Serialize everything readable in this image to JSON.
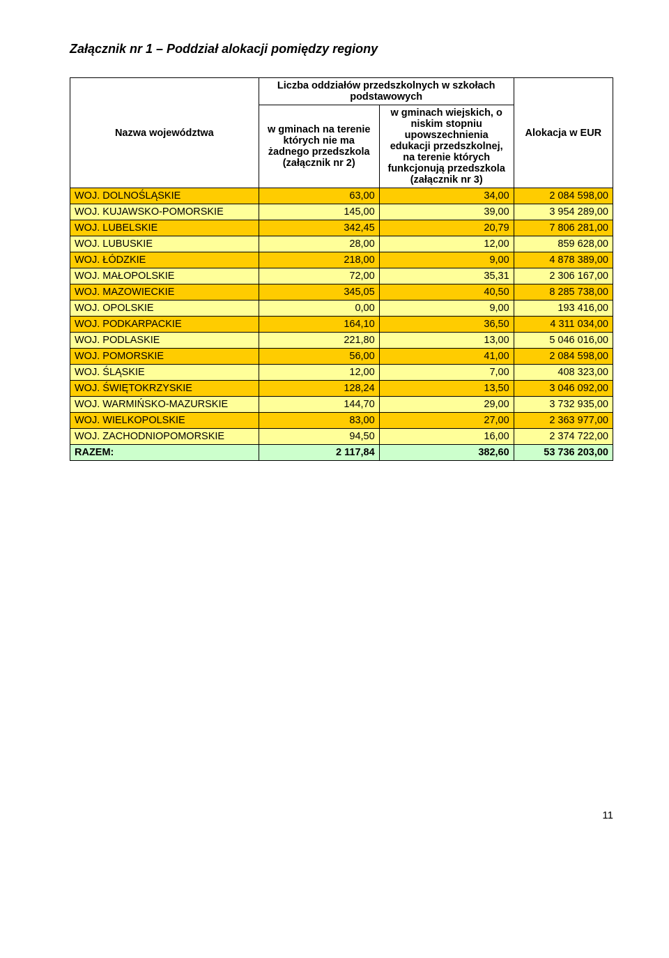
{
  "title": "Załącznik nr 1 – Poddział alokacji pomiędzy regiony",
  "table": {
    "headers": {
      "col_name": "Nazwa województwa",
      "col_group": "Liczba oddziałów przedszkolnych w szkołach podstawowych",
      "col2": "w gminach na terenie których nie ma żadnego przedszkola (załącznik nr 2)",
      "col3": "w gminach wiejskich, o niskim stopniu upowszechnienia edukacji przedszkolnej, na terenie których funkcjonują przedszkola (załącznik nr 3)",
      "col4": "Alokacja w EUR"
    },
    "rows": [
      {
        "name": "WOJ. DOLNOŚLĄSKIE",
        "v1": "63,00",
        "v2": "34,00",
        "v3": "2 084 598,00",
        "cls": "row-orange"
      },
      {
        "name": "WOJ. KUJAWSKO-POMORSKIE",
        "v1": "145,00",
        "v2": "39,00",
        "v3": "3 954 289,00",
        "cls": "row-beige"
      },
      {
        "name": "WOJ. LUBELSKIE",
        "v1": "342,45",
        "v2": "20,79",
        "v3": "7 806 281,00",
        "cls": "row-orange"
      },
      {
        "name": "WOJ. LUBUSKIE",
        "v1": "28,00",
        "v2": "12,00",
        "v3": "859 628,00",
        "cls": "row-beige"
      },
      {
        "name": "WOJ. ŁÓDZKIE",
        "v1": "218,00",
        "v2": "9,00",
        "v3": "4 878 389,00",
        "cls": "row-orange"
      },
      {
        "name": "WOJ. MAŁOPOLSKIE",
        "v1": "72,00",
        "v2": "35,31",
        "v3": "2 306 167,00",
        "cls": "row-beige"
      },
      {
        "name": "WOJ. MAZOWIECKIE",
        "v1": "345,05",
        "v2": "40,50",
        "v3": "8 285 738,00",
        "cls": "row-orange"
      },
      {
        "name": "WOJ. OPOLSKIE",
        "v1": "0,00",
        "v2": "9,00",
        "v3": "193 416,00",
        "cls": "row-beige"
      },
      {
        "name": "WOJ. PODKARPACKIE",
        "v1": "164,10",
        "v2": "36,50",
        "v3": "4 311 034,00",
        "cls": "row-orange"
      },
      {
        "name": "WOJ. PODLASKIE",
        "v1": "221,80",
        "v2": "13,00",
        "v3": "5 046 016,00",
        "cls": "row-beige"
      },
      {
        "name": "WOJ. POMORSKIE",
        "v1": "56,00",
        "v2": "41,00",
        "v3": "2 084 598,00",
        "cls": "row-orange"
      },
      {
        "name": "WOJ. ŚLĄSKIE",
        "v1": "12,00",
        "v2": "7,00",
        "v3": "408 323,00",
        "cls": "row-beige"
      },
      {
        "name": "WOJ. ŚWIĘTOKRZYSKIE",
        "v1": "128,24",
        "v2": "13,50",
        "v3": "3 046 092,00",
        "cls": "row-orange"
      },
      {
        "name": "WOJ. WARMIŃSKO-MAZURSKIE",
        "v1": "144,70",
        "v2": "29,00",
        "v3": "3 732 935,00",
        "cls": "row-beige"
      },
      {
        "name": "WOJ. WIELKOPOLSKIE",
        "v1": "83,00",
        "v2": "27,00",
        "v3": "2 363 977,00",
        "cls": "row-orange"
      },
      {
        "name": "WOJ. ZACHODNIOPOMORSKIE",
        "v1": "94,50",
        "v2": "16,00",
        "v3": "2 374 722,00",
        "cls": "row-beige"
      }
    ],
    "total": {
      "name": "RAZEM:",
      "v1": "2 117,84",
      "v2": "382,60",
      "v3": "53 736 203,00"
    }
  },
  "colors": {
    "orange": "#ffcc00",
    "beige": "#ffff99",
    "total": "#ccffcc",
    "border": "#000000",
    "background": "#ffffff"
  },
  "fonts": {
    "title_size": 18,
    "body_size": 14.5,
    "family": "Arial"
  },
  "page_number": "11"
}
